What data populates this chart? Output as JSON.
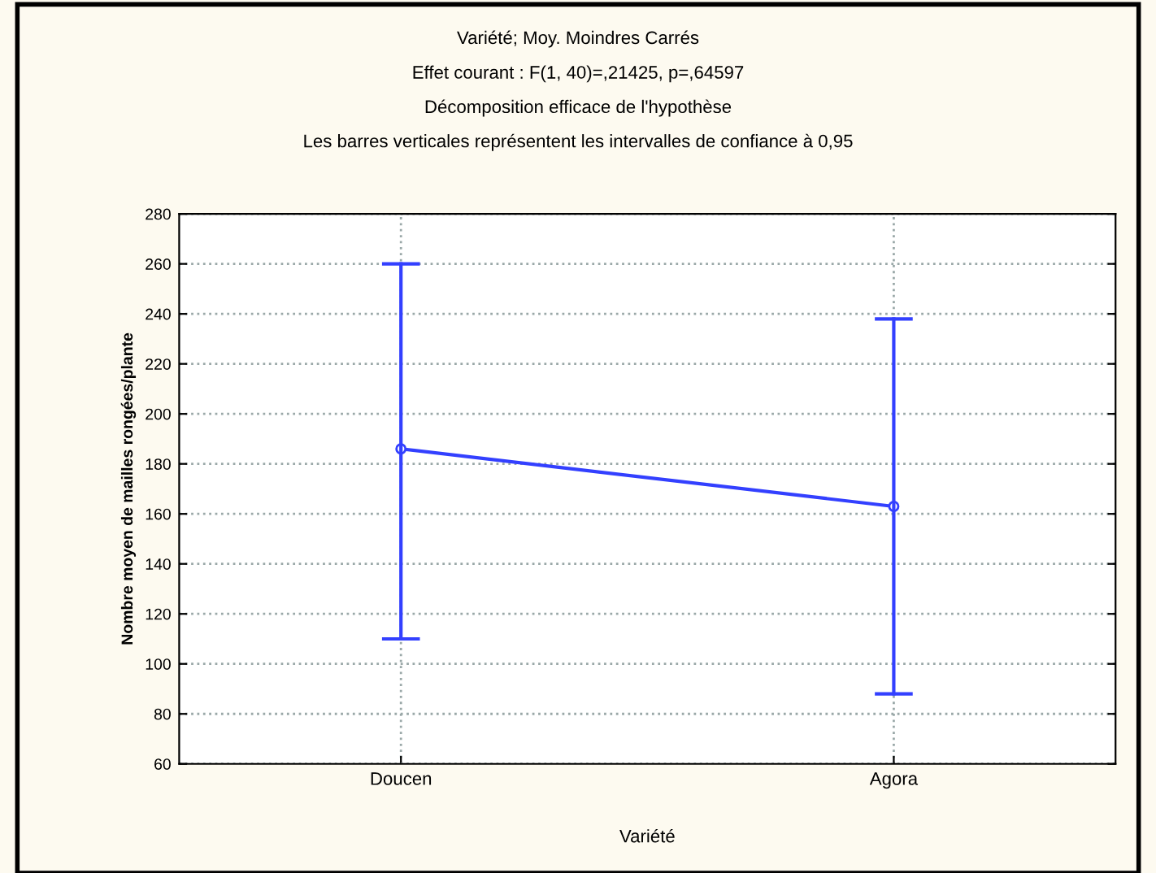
{
  "chart_data": {
    "type": "line",
    "title": "Variété; Moy. Moindres Carrés",
    "subtitle": "Effet courant : F(1, 40)=,21425, p=,64597\nDécomposition efficace de l'hypothèse\nLes barres verticales représentent les intervalles de confiance à 0,95",
    "xlabel": "Variété",
    "ylabel": "Nombre moyen de mailles rongées/plante",
    "categories": [
      "Doucen",
      "Agora"
    ],
    "series": [
      {
        "color": "#3340ff",
        "values": [
          186,
          163
        ],
        "errors": [
          [
            110,
            260
          ],
          [
            88,
            238
          ]
        ]
      }
    ],
    "ylim": [
      60,
      280
    ],
    "yticks": [
      60,
      80,
      100,
      120,
      140,
      160,
      180,
      200,
      220,
      240,
      260,
      280
    ],
    "grid": true,
    "marker": "circle",
    "line_style": "solid"
  }
}
